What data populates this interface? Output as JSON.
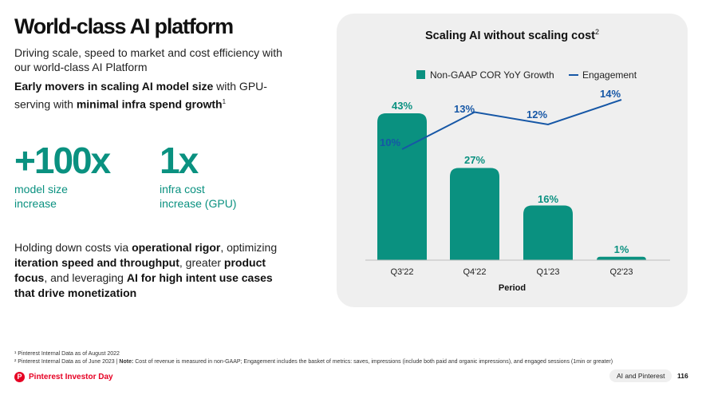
{
  "slide": {
    "title": "World-class AI platform",
    "subtitle": "Driving scale, speed to market and cost efficiency with our world-class AI Platform",
    "para1": {
      "a": "Early movers in scaling AI model size",
      "b": " with GPU-serving with ",
      "c": "minimal infra spend growth",
      "sup": "1"
    },
    "stats": [
      {
        "value": "+100x",
        "desc_line1": "model size",
        "desc_line2": "increase"
      },
      {
        "value": "1x",
        "desc_line1": "infra cost",
        "desc_line2": "increase (GPU)"
      }
    ],
    "para2": {
      "t1": "Holding down costs via ",
      "b1": "operational rigor",
      "t2": ", optimizing ",
      "b2": "iteration speed and throughput",
      "t3": ", greater ",
      "b3": "product focus",
      "t4": ", and leveraging ",
      "b4": "AI for high intent use cases that drive monetization"
    }
  },
  "chart_panel": {
    "title": "Scaling AI without scaling cost",
    "title_sup": "2",
    "legend": {
      "bar_label": "Non-GAAP COR YoY Growth",
      "line_label": "Engagement"
    }
  },
  "chart_data": {
    "type": "bar",
    "categories": [
      "Q3'22",
      "Q4'22",
      "Q1'23",
      "Q2'23"
    ],
    "series": [
      {
        "name": "Non-GAAP COR YoY Growth",
        "type": "bar",
        "values": [
          43,
          27,
          16,
          1
        ],
        "labels": [
          "43%",
          "27%",
          "16%",
          "1%"
        ],
        "color": "#0a9180"
      },
      {
        "name": "Engagement",
        "type": "line",
        "values": [
          10,
          13,
          12,
          14
        ],
        "labels": [
          "10%",
          "13%",
          "12%",
          "14%"
        ],
        "color": "#1657a6"
      }
    ],
    "xlabel": "Period",
    "ylabel": "",
    "legend_position": "top",
    "grid": false
  },
  "footnotes": {
    "f1": "¹ Pinterest Internal Data as of August 2022",
    "f2_pre": "² Pinterest Internal Data as of June 2023 | ",
    "f2_note_label": "Note:",
    "f2_post": " Cost of revenue is measured in non-GAAP; Engagement includes the basket of metrics: saves, impressions (include both paid and organic impressions), and engaged sessions (1min or greater)"
  },
  "footer": {
    "brand_icon": "P",
    "brand": "Pinterest Investor Day",
    "section": "AI and Pinterest",
    "page": "116"
  },
  "colors": {
    "accent_teal": "#0a9180",
    "line_blue": "#1657a6",
    "brand_red": "#e60023",
    "panel_bg": "#efefef"
  }
}
